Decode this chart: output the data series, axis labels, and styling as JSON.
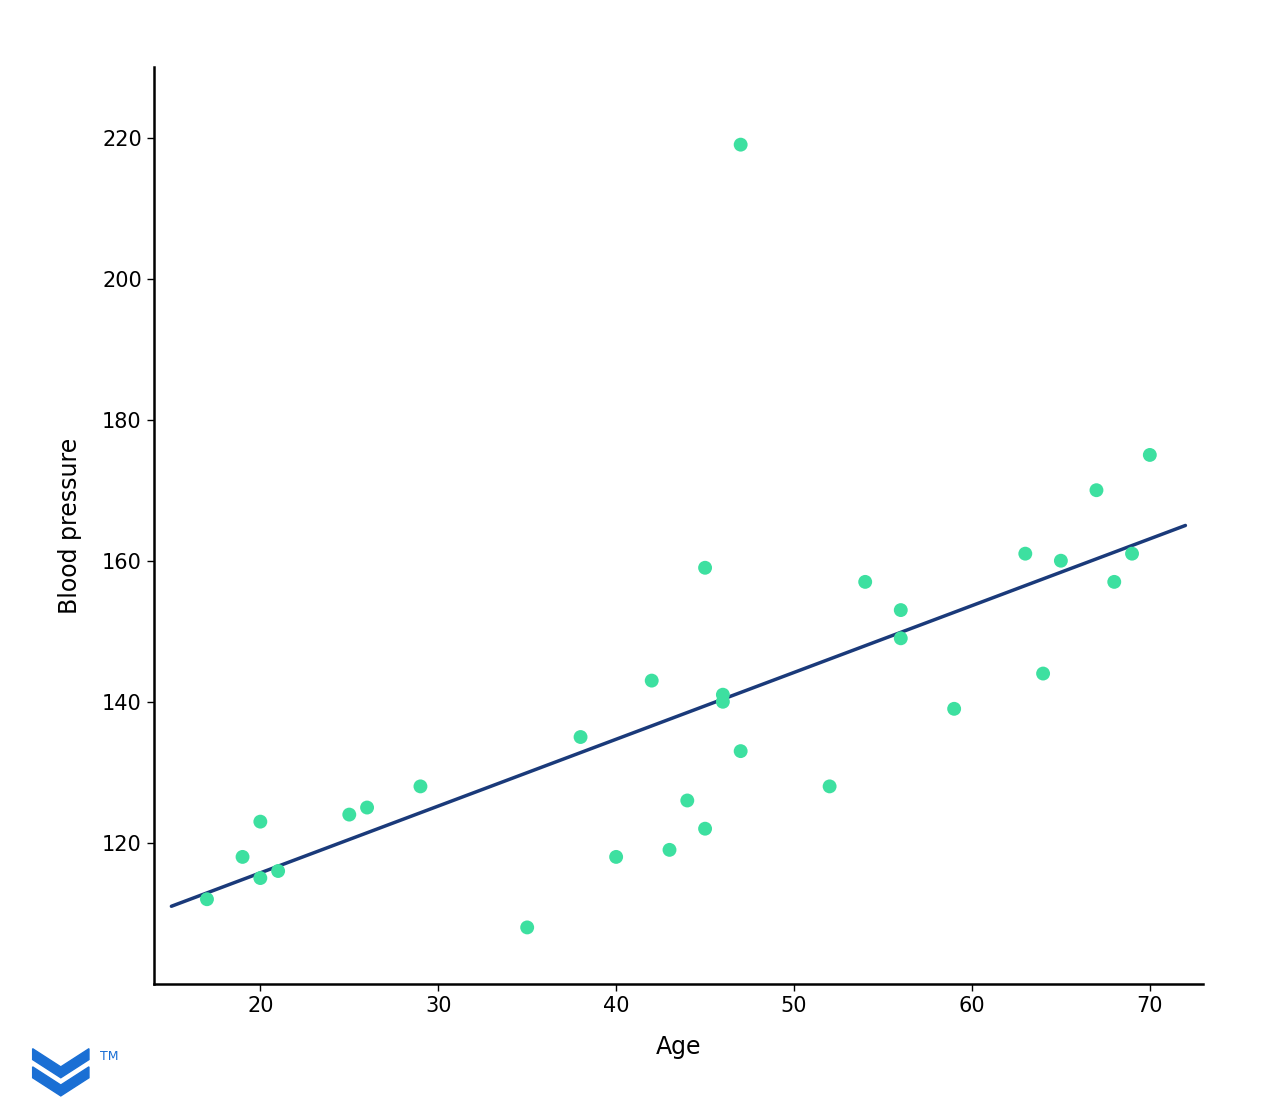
{
  "scatter_x": [
    17,
    19,
    20,
    20,
    21,
    25,
    26,
    29,
    35,
    38,
    40,
    42,
    43,
    44,
    45,
    45,
    46,
    46,
    47,
    47,
    52,
    54,
    56,
    56,
    59,
    63,
    64,
    65,
    67,
    68,
    69,
    70
  ],
  "scatter_y": [
    112,
    118,
    115,
    123,
    116,
    124,
    125,
    128,
    108,
    135,
    118,
    143,
    119,
    126,
    122,
    159,
    140,
    141,
    133,
    219,
    128,
    157,
    149,
    153,
    139,
    161,
    144,
    160,
    170,
    157,
    161,
    175
  ],
  "line_x": [
    15,
    72
  ],
  "line_y": [
    111.0,
    165.0
  ],
  "scatter_color": "#3de0a0",
  "line_color": "#1a3a7a",
  "xlabel": "Age",
  "ylabel": "Blood pressure",
  "xlim": [
    14,
    73
  ],
  "ylim": [
    100,
    230
  ],
  "xticks": [
    20,
    30,
    40,
    50,
    60,
    70
  ],
  "yticks": [
    120,
    140,
    160,
    180,
    200,
    220
  ],
  "background_color": "#ffffff",
  "scatter_size": 100,
  "line_width": 2.5,
  "xlabel_fontsize": 17,
  "ylabel_fontsize": 17,
  "tick_fontsize": 15,
  "logo_color": "#1a6fd4"
}
